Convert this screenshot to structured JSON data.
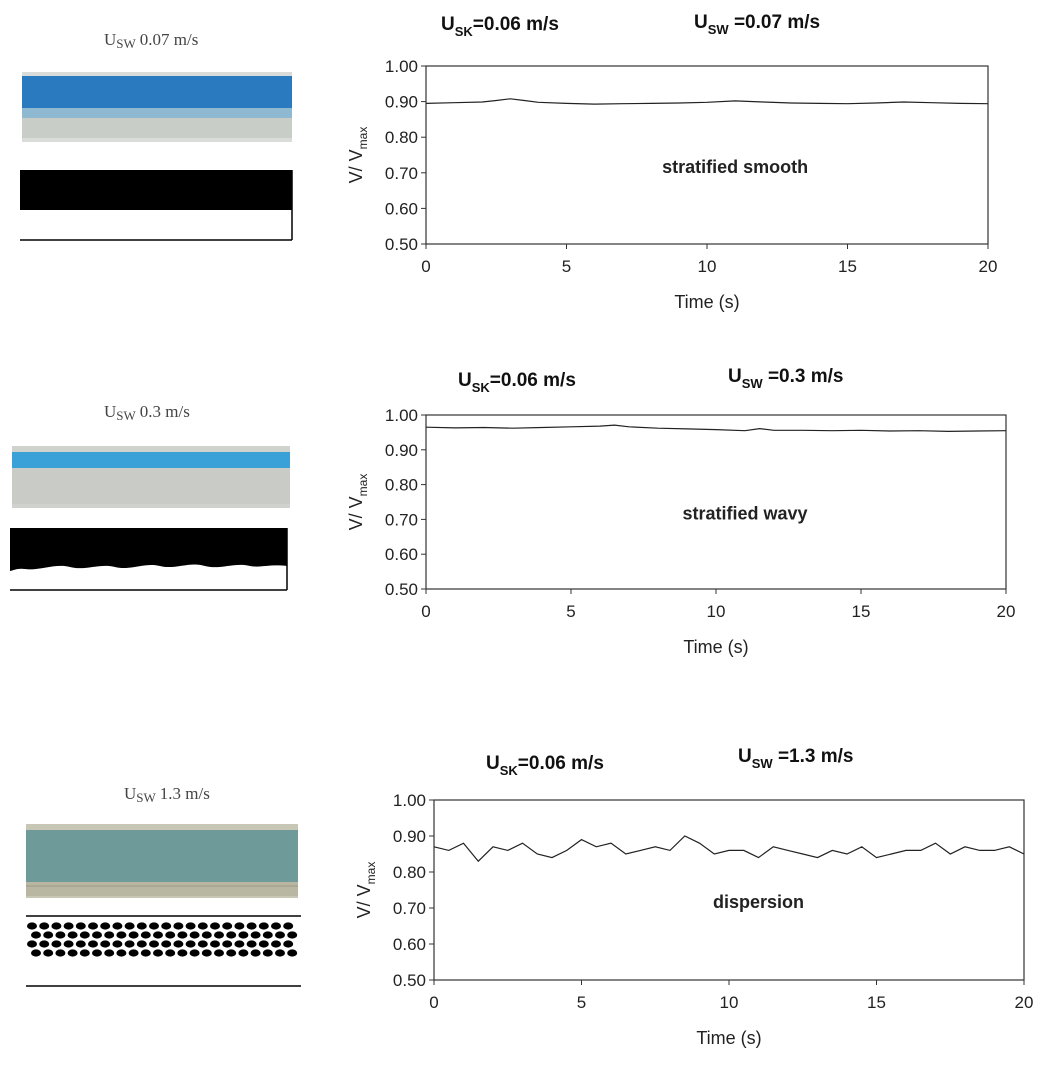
{
  "panels": [
    {
      "photo_label": {
        "u": "U",
        "sub": "SW",
        "value": "0.07 m/s"
      },
      "flow_pattern": "stratified smooth",
      "conditions": {
        "sk": {
          "u": "U",
          "sub": "SK",
          "value": "=0.06 m/s"
        },
        "sw": {
          "u": "U",
          "sub": "SW",
          "value": " =0.07 m/s"
        }
      },
      "colors": {
        "oil": "#2a7ac0",
        "water": "#c9cdc8"
      }
    },
    {
      "photo_label": {
        "u": "U",
        "sub": "SW",
        "value": "0.3 m/s"
      },
      "flow_pattern": "stratified wavy",
      "conditions": {
        "sk": {
          "u": "U",
          "sub": "SK",
          "value": "=0.06 m/s"
        },
        "sw": {
          "u": "U",
          "sub": "SW",
          "value": " =0.3 m/s"
        }
      },
      "colors": {
        "oil": "#3aa0d8",
        "water": "#c8cbc6"
      }
    },
    {
      "photo_label": {
        "u": "U",
        "sub": "SW",
        "value": "1.3 m/s"
      },
      "flow_pattern": "dispersion",
      "conditions": {
        "sk": {
          "u": "U",
          "sub": "SK",
          "value": "=0.06 m/s"
        },
        "sw": {
          "u": "U",
          "sub": "SW",
          "value": " =1.3 m/s"
        }
      },
      "colors": {
        "oil": "#6e9a9a",
        "water": "#b9b6a2"
      }
    }
  ],
  "chart_data": [
    {
      "type": "line",
      "xlabel": "Time (s)",
      "ylabel": "V/ V",
      "ylabel_sub": "max",
      "xlim": [
        0,
        20
      ],
      "ylim": [
        0.5,
        1.0
      ],
      "xticks": [
        "0",
        "5",
        "10",
        "15",
        "20"
      ],
      "yticks": [
        "0.50",
        "0.60",
        "0.70",
        "0.80",
        "0.90",
        "1.00"
      ],
      "annotation": "stratified smooth",
      "grid": false,
      "series": [
        {
          "x": [
            0,
            1,
            2,
            2.5,
            3,
            3.5,
            4,
            5,
            6,
            7,
            8,
            9,
            10,
            11,
            12,
            13,
            14,
            15,
            16,
            17,
            18,
            19,
            20
          ],
          "y": [
            0.895,
            0.897,
            0.899,
            0.903,
            0.908,
            0.903,
            0.898,
            0.895,
            0.893,
            0.894,
            0.895,
            0.896,
            0.898,
            0.902,
            0.899,
            0.896,
            0.895,
            0.894,
            0.896,
            0.899,
            0.897,
            0.895,
            0.894
          ]
        }
      ]
    },
    {
      "type": "line",
      "xlabel": "Time (s)",
      "ylabel": "V/ V",
      "ylabel_sub": "max",
      "xlim": [
        0,
        20
      ],
      "ylim": [
        0.5,
        1.0
      ],
      "xticks": [
        "0",
        "5",
        "10",
        "15",
        "20"
      ],
      "yticks": [
        "0.50",
        "0.60",
        "0.70",
        "0.80",
        "0.90",
        "1.00"
      ],
      "annotation": "stratified wavy",
      "grid": false,
      "series": [
        {
          "x": [
            0,
            1,
            2,
            3,
            4,
            5,
            6,
            6.5,
            7,
            8,
            9,
            10,
            11,
            11.5,
            12,
            13,
            14,
            15,
            16,
            17,
            18,
            19,
            20
          ],
          "y": [
            0.965,
            0.963,
            0.964,
            0.962,
            0.964,
            0.966,
            0.968,
            0.971,
            0.966,
            0.962,
            0.96,
            0.958,
            0.955,
            0.961,
            0.956,
            0.956,
            0.955,
            0.956,
            0.954,
            0.955,
            0.953,
            0.954,
            0.955
          ]
        }
      ]
    },
    {
      "type": "line",
      "xlabel": "Time (s)",
      "ylabel": "V/ V",
      "ylabel_sub": "max",
      "xlim": [
        0,
        20
      ],
      "ylim": [
        0.5,
        1.0
      ],
      "xticks": [
        "0",
        "5",
        "10",
        "15",
        "20"
      ],
      "yticks": [
        "0.50",
        "0.60",
        "0.70",
        "0.80",
        "0.90",
        "1.00"
      ],
      "annotation": "dispersion",
      "grid": false,
      "series": [
        {
          "x": [
            0,
            0.5,
            1,
            1.5,
            2,
            2.5,
            3,
            3.5,
            4,
            4.5,
            5,
            5.5,
            6,
            6.5,
            7,
            7.5,
            8,
            8.5,
            9,
            9.5,
            10,
            10.5,
            11,
            11.5,
            12,
            12.5,
            13,
            13.5,
            14,
            14.5,
            15,
            15.5,
            16,
            16.5,
            17,
            17.5,
            18,
            18.5,
            19,
            19.5,
            20
          ],
          "y": [
            0.87,
            0.86,
            0.88,
            0.83,
            0.87,
            0.86,
            0.88,
            0.85,
            0.84,
            0.86,
            0.89,
            0.87,
            0.88,
            0.85,
            0.86,
            0.87,
            0.86,
            0.9,
            0.88,
            0.85,
            0.86,
            0.86,
            0.84,
            0.87,
            0.86,
            0.85,
            0.84,
            0.86,
            0.85,
            0.87,
            0.84,
            0.85,
            0.86,
            0.86,
            0.88,
            0.85,
            0.87,
            0.86,
            0.86,
            0.87,
            0.85
          ]
        }
      ]
    }
  ]
}
